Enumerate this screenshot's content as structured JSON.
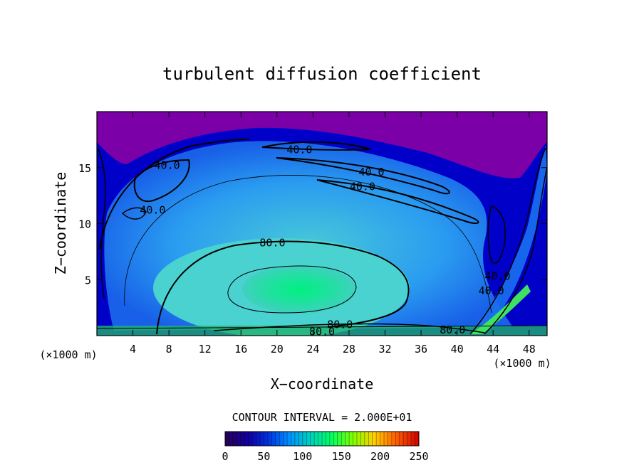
{
  "chart_data": {
    "type": "heatmap",
    "title": "turbulent diffusion coefficient",
    "xlabel": "X−coordinate",
    "ylabel": "Z−coordinate",
    "x_unit": "(×1000 m)",
    "x_unit_right": "(×1000 m)",
    "xlim": [
      0,
      50
    ],
    "ylim": [
      0,
      20
    ],
    "x_ticks": [
      4,
      8,
      12,
      16,
      20,
      24,
      28,
      32,
      36,
      40,
      44,
      48
    ],
    "y_ticks": [
      5,
      10,
      15
    ],
    "contour_interval_text": "CONTOUR INTERVAL = 2.000E+01",
    "colorbar": {
      "range": [
        0,
        250
      ],
      "ticks": [
        0,
        50,
        100,
        150,
        200,
        250
      ],
      "colors": [
        "#2a0055",
        "#0000d0",
        "#0050ff",
        "#00b0ff",
        "#00ff80",
        "#40ff00",
        "#c0ff00",
        "#ffd000",
        "#ff6000",
        "#d00000"
      ]
    },
    "contour_labels": [
      {
        "text": "40.0",
        "x": 22.5,
        "y": 16.6
      },
      {
        "text": "40.0",
        "x": 7.8,
        "y": 15.2
      },
      {
        "text": "40.0",
        "x": 30.5,
        "y": 14.6
      },
      {
        "text": "40.0",
        "x": 29.5,
        "y": 13.3
      },
      {
        "text": "40.0",
        "x": 6.2,
        "y": 11.2
      },
      {
        "text": "80.0",
        "x": 19.5,
        "y": 8.3
      },
      {
        "text": "80.0",
        "x": 27.0,
        "y": 1.0
      },
      {
        "text": "80.0",
        "x": 25.0,
        "y": 0.35
      },
      {
        "text": "80.0",
        "x": 39.5,
        "y": 0.5
      },
      {
        "text": "40.0",
        "x": 44.5,
        "y": 5.3
      },
      {
        "text": "40.0",
        "x": 43.8,
        "y": 4.0
      }
    ],
    "colors": {
      "background_top": "#7b00a8",
      "outer": "#0000c8",
      "mid": "#2878f0",
      "inner": "#50c8d8",
      "core": "#00f080"
    }
  }
}
